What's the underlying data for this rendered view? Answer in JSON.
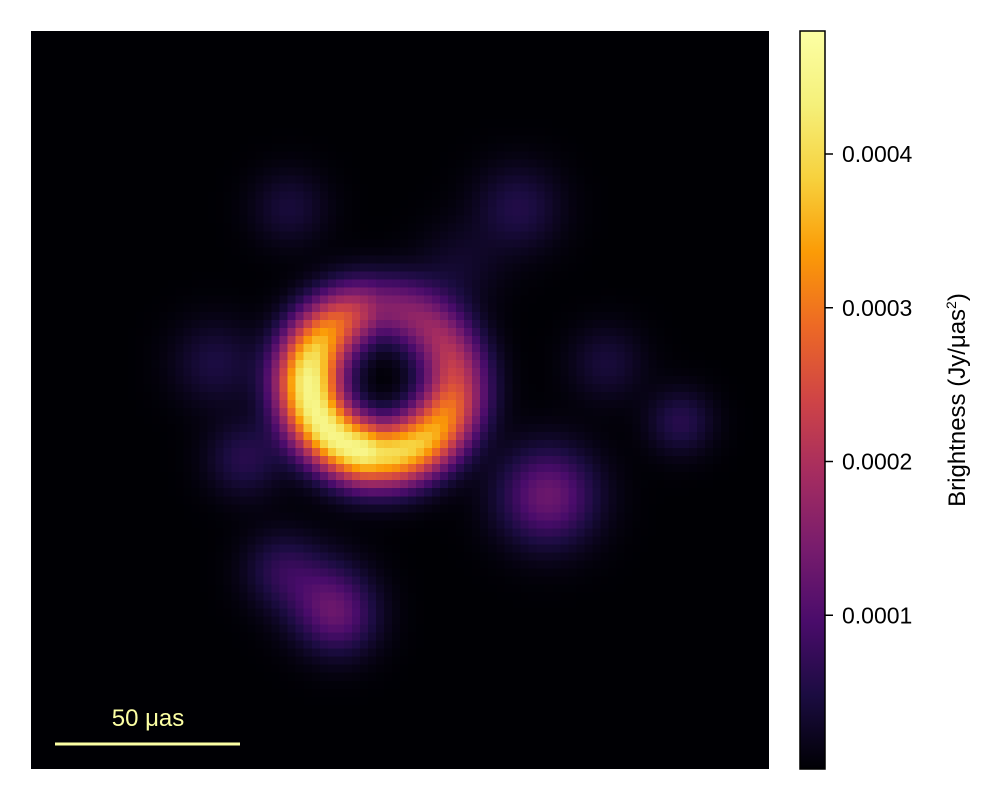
{
  "chart_data": {
    "type": "heatmap",
    "title": "",
    "xlabel": "",
    "ylabel": "",
    "colormap": "inferno",
    "colorbar": {
      "label_main": "Brightness (Jy/μas",
      "label_sup": "2",
      "label_close": ")",
      "range": [
        0.0,
        0.00048
      ],
      "ticks": [
        {
          "value": 0.0001,
          "label": "0.0001"
        },
        {
          "value": 0.0002,
          "label": "0.0002"
        },
        {
          "value": 0.0003,
          "label": "0.0003"
        },
        {
          "value": 0.0004,
          "label": "0.0004"
        }
      ]
    },
    "scale_bar": {
      "label": "50 μas",
      "length_uas": 50,
      "color": "#fcffa4"
    },
    "image_extent_uas": 200,
    "background_color": "#000004",
    "features": [
      {
        "kind": "ring",
        "peak_brightness": 0.00045,
        "description_ref": "bright ring, brighter on left and bottom"
      },
      {
        "kind": "blob",
        "peak_brightness": 0.00013
      },
      {
        "kind": "blob",
        "peak_brightness": 8e-05
      },
      {
        "kind": "blob",
        "peak_brightness": 6e-05
      }
    ]
  }
}
